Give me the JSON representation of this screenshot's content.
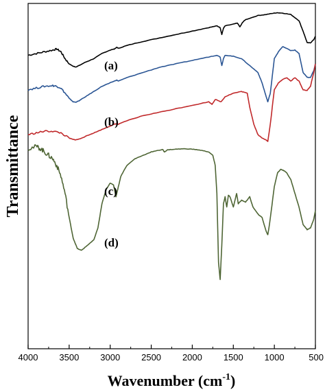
{
  "chart_data": {
    "type": "line",
    "xlabel": "Wavenumber (cm",
    "xlabel_sup": "-1",
    "xlabel_close": ")",
    "ylabel": "Transmittance",
    "xlim": [
      4000,
      500
    ],
    "x_reversed": true,
    "ylim": [
      0,
      100
    ],
    "y_tick_labels_shown": false,
    "x_ticks": [
      4000,
      3500,
      3000,
      2500,
      2000,
      1500,
      1000,
      500
    ],
    "x_tick_labels": [
      "4000",
      "3500",
      "3000",
      "2500",
      "2000",
      "1500",
      "1000",
      "500"
    ],
    "grid": false,
    "legend": "none",
    "series": [
      {
        "label": "(a)",
        "color": "#000000",
        "x": [
          4000,
          3900,
          3800,
          3700,
          3650,
          3600,
          3550,
          3500,
          3450,
          3420,
          3380,
          3300,
          3200,
          3100,
          3000,
          2950,
          2920,
          2900,
          2800,
          2600,
          2400,
          2200,
          2000,
          1800,
          1700,
          1660,
          1640,
          1620,
          1600,
          1500,
          1450,
          1420,
          1385,
          1350,
          1200,
          1100,
          1000,
          950,
          900,
          800,
          700,
          650,
          600,
          560,
          520,
          500
        ],
        "y": [
          85.0,
          85.5,
          86.0,
          86.5,
          86.8,
          86.0,
          84.0,
          82.5,
          81.8,
          81.6,
          82.0,
          83.0,
          84.0,
          85.5,
          86.5,
          86.8,
          87.3,
          87.0,
          87.8,
          89.0,
          90.0,
          91.0,
          92.0,
          93.0,
          93.5,
          93.0,
          91.0,
          92.8,
          93.5,
          94.0,
          94.3,
          93.2,
          94.6,
          95.3,
          96.5,
          96.8,
          97.2,
          97.3,
          97.2,
          96.8,
          95.0,
          92.0,
          88.6,
          88.6,
          89.5,
          90.5
        ]
      },
      {
        "label": "(b)",
        "color": "#2a5594",
        "x": [
          4000,
          3900,
          3800,
          3700,
          3650,
          3600,
          3550,
          3500,
          3450,
          3420,
          3380,
          3300,
          3200,
          3100,
          3000,
          2950,
          2920,
          2900,
          2800,
          2600,
          2400,
          2200,
          2000,
          1800,
          1700,
          1660,
          1640,
          1620,
          1600,
          1500,
          1400,
          1300,
          1200,
          1150,
          1100,
          1080,
          1050,
          1000,
          950,
          900,
          850,
          800,
          750,
          700,
          650,
          600,
          560,
          520,
          500
        ],
        "y": [
          75.0,
          75.5,
          76.0,
          76.2,
          76.0,
          75.5,
          74.0,
          72.5,
          71.5,
          71.4,
          71.8,
          73.0,
          74.5,
          76.0,
          77.0,
          77.5,
          77.8,
          77.5,
          78.5,
          80.0,
          81.5,
          82.5,
          83.5,
          84.5,
          85.0,
          84.5,
          82.0,
          84.0,
          85.0,
          84.7,
          84.0,
          82.0,
          80.0,
          77.0,
          73.0,
          71.5,
          74.0,
          84.0,
          86.0,
          87.5,
          87.0,
          86.3,
          86.5,
          85.5,
          80.0,
          78.6,
          78.6,
          80.5,
          82.5
        ]
      },
      {
        "label": "(c)",
        "color": "#c0282a",
        "x": [
          4000,
          3900,
          3800,
          3700,
          3600,
          3500,
          3450,
          3420,
          3380,
          3300,
          3200,
          3100,
          3000,
          2950,
          2920,
          2900,
          2800,
          2600,
          2400,
          2200,
          2000,
          1800,
          1760,
          1720,
          1650,
          1600,
          1500,
          1400,
          1330,
          1300,
          1250,
          1200,
          1150,
          1100,
          1080,
          1050,
          1000,
          950,
          900,
          850,
          800,
          750,
          700,
          650,
          600,
          560,
          520,
          500
        ],
        "y": [
          62.0,
          62.5,
          63.0,
          63.0,
          62.5,
          61.0,
          60.6,
          60.5,
          60.7,
          61.5,
          62.5,
          63.5,
          64.5,
          65.0,
          65.2,
          65.0,
          66.0,
          67.5,
          68.5,
          69.5,
          70.5,
          71.5,
          70.8,
          72.2,
          71.5,
          73.0,
          74.0,
          74.5,
          74.0,
          70.0,
          65.0,
          62.0,
          61.0,
          60.5,
          60.0,
          65.0,
          75.0,
          77.0,
          78.0,
          78.5,
          77.5,
          78.5,
          77.5,
          75.0,
          74.8,
          76.0,
          80.0,
          82.5
        ]
      },
      {
        "label": "(d)",
        "color": "#4e6534",
        "x": [
          4000,
          3900,
          3850,
          3800,
          3750,
          3700,
          3650,
          3600,
          3550,
          3500,
          3450,
          3400,
          3350,
          3300,
          3250,
          3200,
          3150,
          3100,
          3050,
          3000,
          2960,
          2930,
          2900,
          2870,
          2800,
          2700,
          2600,
          2500,
          2400,
          2360,
          2340,
          2300,
          2200,
          2100,
          2000,
          1900,
          1800,
          1750,
          1720,
          1700,
          1680,
          1660,
          1640,
          1620,
          1600,
          1580,
          1560,
          1540,
          1500,
          1460,
          1440,
          1400,
          1350,
          1300,
          1260,
          1200,
          1150,
          1100,
          1080,
          1060,
          1000,
          960,
          920,
          880,
          850,
          800,
          750,
          700,
          650,
          600,
          560,
          520,
          500
        ],
        "y": [
          58.0,
          58.5,
          58.0,
          57.0,
          56.0,
          55.0,
          53.0,
          50.0,
          45.0,
          38.0,
          32.0,
          29.0,
          28.5,
          29.5,
          30.5,
          31.5,
          35.0,
          42.0,
          46.0,
          48.0,
          47.5,
          44.0,
          47.0,
          50.0,
          53.0,
          55.0,
          56.0,
          57.0,
          57.5,
          57.7,
          57.0,
          57.6,
          57.8,
          57.9,
          57.8,
          57.5,
          57.0,
          56.0,
          53.0,
          45.0,
          25.0,
          20.0,
          30.0,
          42.0,
          44.0,
          41.0,
          44.5,
          44.0,
          41.0,
          45.0,
          42.0,
          43.0,
          42.5,
          44.0,
          41.0,
          39.0,
          38.0,
          34.0,
          33.0,
          36.0,
          47.0,
          51.0,
          52.0,
          51.5,
          51.0,
          49.0,
          45.0,
          41.0,
          36.0,
          34.5,
          35.0,
          37.5,
          40.0
        ]
      }
    ]
  }
}
